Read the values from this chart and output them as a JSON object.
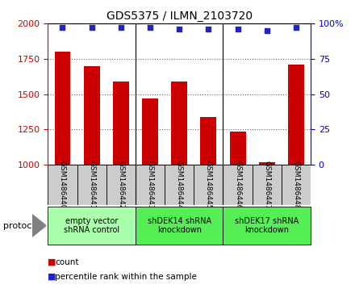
{
  "title": "GDS5375 / ILMN_2103720",
  "samples": [
    "GSM1486440",
    "GSM1486441",
    "GSM1486442",
    "GSM1486443",
    "GSM1486444",
    "GSM1486445",
    "GSM1486446",
    "GSM1486447",
    "GSM1486448"
  ],
  "counts": [
    1800,
    1700,
    1590,
    1470,
    1590,
    1335,
    1235,
    1020,
    1710
  ],
  "percentiles": [
    97,
    97,
    97,
    97,
    96,
    96,
    96,
    95,
    97
  ],
  "ylim_left": [
    1000,
    2000
  ],
  "ylim_right": [
    0,
    100
  ],
  "yticks_left": [
    1000,
    1250,
    1500,
    1750,
    2000
  ],
  "yticks_right": [
    0,
    25,
    50,
    75,
    100
  ],
  "bar_color": "#cc0000",
  "dot_color": "#2222cc",
  "groups": [
    {
      "label": "empty vector\nshRNA control",
      "start": 0,
      "end": 3,
      "color": "#aaffaa"
    },
    {
      "label": "shDEK14 shRNA\nknockdown",
      "start": 3,
      "end": 6,
      "color": "#55ee55"
    },
    {
      "label": "shDEK17 shRNA\nknockdown",
      "start": 6,
      "end": 9,
      "color": "#55ee55"
    }
  ],
  "protocol_label": "protocol",
  "legend_count_label": "count",
  "legend_pct_label": "percentile rank within the sample",
  "bg_color": "#ffffff",
  "tick_label_color_left": "#cc0000",
  "tick_label_color_right": "#0000cc",
  "sample_bg": "#cccccc",
  "figsize": [
    4.4,
    3.63
  ],
  "dpi": 100
}
